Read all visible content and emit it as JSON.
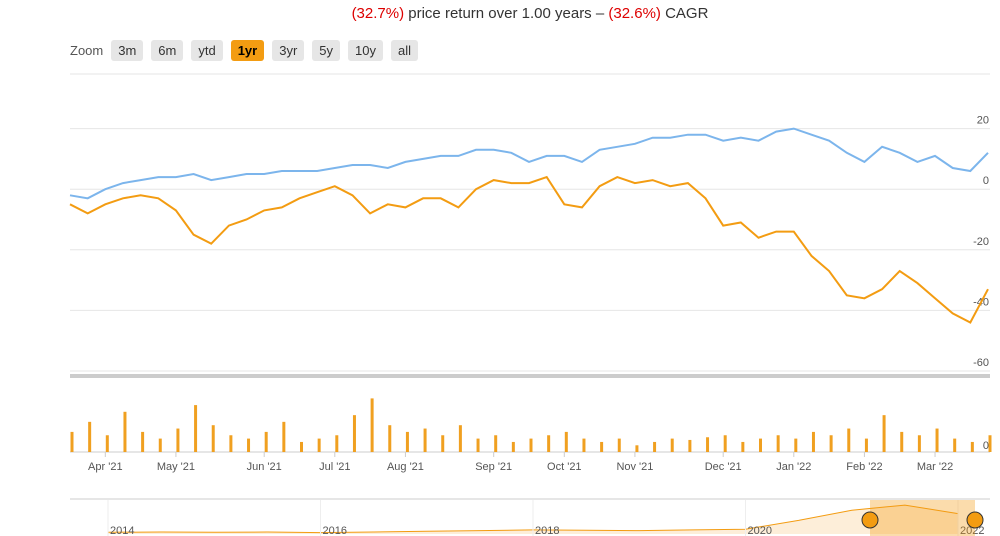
{
  "header": {
    "return": "(32.7%)",
    "return_text": "price return over 1.00 years –",
    "cagr": "(32.6%)",
    "cagr_text": "CAGR"
  },
  "zoom": {
    "label": "Zoom",
    "buttons": [
      "3m",
      "6m",
      "ytd",
      "1yr",
      "3yr",
      "5y",
      "10y",
      "all"
    ],
    "active": "1yr"
  },
  "chart_data": [
    {
      "type": "line",
      "categories": [
        null,
        null,
        "Apr '21",
        null,
        null,
        null,
        "May '21",
        null,
        null,
        null,
        null,
        "Jun '21",
        null,
        null,
        null,
        "Jul '21",
        null,
        null,
        null,
        "Aug '21",
        null,
        null,
        null,
        null,
        "Sep '21",
        null,
        null,
        null,
        "Oct '21",
        null,
        null,
        null,
        "Nov '21",
        null,
        null,
        null,
        null,
        "Dec '21",
        null,
        null,
        null,
        "Jan '22",
        null,
        null,
        null,
        "Feb '22",
        null,
        null,
        null,
        "Mar '22",
        null,
        null,
        null
      ],
      "series": [
        {
          "color": "#7cb5ec",
          "values": [
            -2,
            -3,
            0,
            2,
            3,
            4,
            4,
            5,
            3,
            4,
            5,
            5,
            6,
            6,
            6,
            7,
            8,
            8,
            7,
            9,
            10,
            11,
            11,
            13,
            13,
            12,
            9,
            11,
            11,
            9,
            13,
            14,
            15,
            17,
            17,
            18,
            18,
            16,
            17,
            16,
            19,
            20,
            18,
            16,
            12,
            9,
            14,
            12,
            9,
            11,
            7,
            6,
            12
          ]
        },
        {
          "color": "#f39c12",
          "values": [
            -5,
            -8,
            -5,
            -3,
            -2,
            -3,
            -7,
            -15,
            -18,
            -12,
            -10,
            -7,
            -6,
            -3,
            -1,
            1,
            -2,
            -8,
            -5,
            -6,
            -3,
            -3,
            -6,
            0,
            3,
            2,
            2,
            4,
            -5,
            -6,
            1,
            4,
            2,
            3,
            1,
            2,
            -3,
            -12,
            -11,
            -16,
            -14,
            -14,
            -22,
            -27,
            -35,
            -36,
            -33,
            -27,
            -31,
            -36,
            -41,
            -44,
            -33
          ]
        }
      ],
      "ylim": [
        -60,
        40
      ],
      "yticks": [
        -60,
        -40,
        -20,
        0,
        20
      ],
      "grid": true
    },
    {
      "type": "bar",
      "color": "#f0a020",
      "values": [
        30,
        45,
        25,
        60,
        30,
        20,
        35,
        70,
        40,
        25,
        20,
        30,
        45,
        15,
        20,
        25,
        55,
        80,
        40,
        30,
        35,
        25,
        40,
        20,
        25,
        15,
        20,
        25,
        30,
        20,
        15,
        20,
        10,
        15,
        20,
        18,
        22,
        25,
        15,
        20,
        25,
        20,
        30,
        25,
        35,
        20,
        55,
        30,
        25,
        35,
        20,
        15,
        25
      ],
      "ylim": [
        0,
        100
      ],
      "yticks": [
        0
      ]
    },
    {
      "type": "area",
      "color": "#f39c12",
      "categories": [
        "2014",
        null,
        null,
        null,
        "2016",
        null,
        null,
        null,
        "2018",
        null,
        null,
        null,
        "2020",
        null,
        null,
        null,
        "2022"
      ],
      "values": [
        5,
        6,
        5,
        6,
        4,
        6,
        8,
        10,
        12,
        11,
        10,
        12,
        14,
        40,
        70,
        85,
        60
      ],
      "ylim": [
        0,
        100
      ]
    }
  ]
}
